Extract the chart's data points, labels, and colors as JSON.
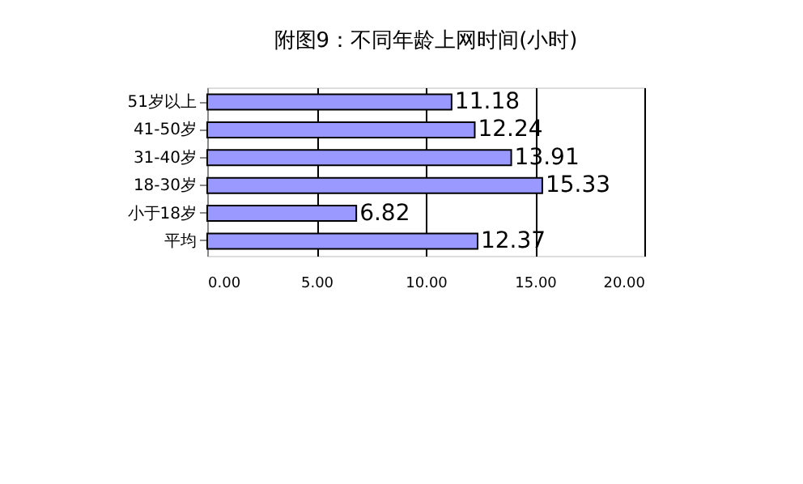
{
  "chart_data": {
    "type": "bar",
    "orientation": "horizontal",
    "title": "附图9：不同年龄上网时间(小时)",
    "categories": [
      "51岁以上",
      "41-50岁",
      "31-40岁",
      "18-30岁",
      "小于18岁",
      "平均"
    ],
    "values": [
      11.18,
      12.24,
      13.91,
      15.33,
      6.82,
      12.37
    ],
    "color": "#9999ff",
    "xlim": [
      0,
      20
    ],
    "xticks": [
      {
        "value": 0,
        "label": "0.00"
      },
      {
        "value": 5,
        "label": "5.00"
      },
      {
        "value": 10,
        "label": "10.00"
      },
      {
        "value": 15,
        "label": "15.00"
      },
      {
        "value": 20,
        "label": "20.00"
      }
    ],
    "grid": "x",
    "data_labels": true
  }
}
